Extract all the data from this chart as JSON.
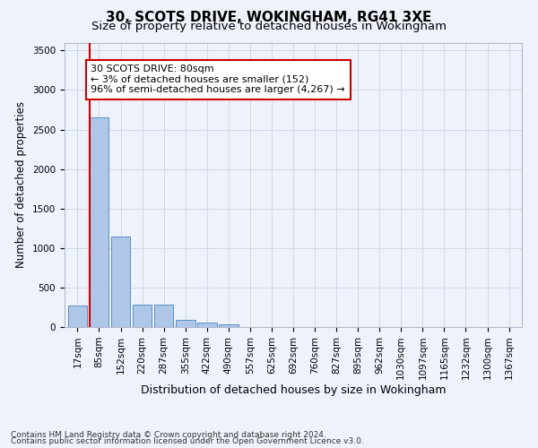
{
  "title1": "30, SCOTS DRIVE, WOKINGHAM, RG41 3XE",
  "title2": "Size of property relative to detached houses in Wokingham",
  "xlabel": "Distribution of detached houses by size in Wokingham",
  "ylabel": "Number of detached properties",
  "footnote1": "Contains HM Land Registry data © Crown copyright and database right 2024.",
  "footnote2": "Contains public sector information licensed under the Open Government Licence v3.0.",
  "bar_labels": [
    "17sqm",
    "85sqm",
    "152sqm",
    "220sqm",
    "287sqm",
    "355sqm",
    "422sqm",
    "490sqm",
    "557sqm",
    "625sqm",
    "692sqm",
    "760sqm",
    "827sqm",
    "895sqm",
    "962sqm",
    "1030sqm",
    "1097sqm",
    "1165sqm",
    "1232sqm",
    "1300sqm",
    "1367sqm"
  ],
  "bar_values": [
    270,
    2650,
    1140,
    285,
    285,
    95,
    55,
    38,
    0,
    0,
    0,
    0,
    0,
    0,
    0,
    0,
    0,
    0,
    0,
    0,
    0
  ],
  "bar_color": "#aec6e8",
  "bar_edge_color": "#5a8fc2",
  "grid_color": "#d0d8e8",
  "background_color": "#eef2fa",
  "axes_background": "#eef2fa",
  "annotation_text": "30 SCOTS DRIVE: 80sqm\n← 3% of detached houses are smaller (152)\n96% of semi-detached houses are larger (4,267) →",
  "annotation_box_color": "#ffffff",
  "annotation_edge_color": "#cc0000",
  "ylim": [
    0,
    3600
  ],
  "yticks": [
    0,
    500,
    1000,
    1500,
    2000,
    2500,
    3000,
    3500
  ],
  "vline_color": "#cc0000",
  "title1_fontsize": 11,
  "title2_fontsize": 9.5,
  "xlabel_fontsize": 9,
  "ylabel_fontsize": 8.5,
  "tick_fontsize": 7.5,
  "annotation_fontsize": 8
}
